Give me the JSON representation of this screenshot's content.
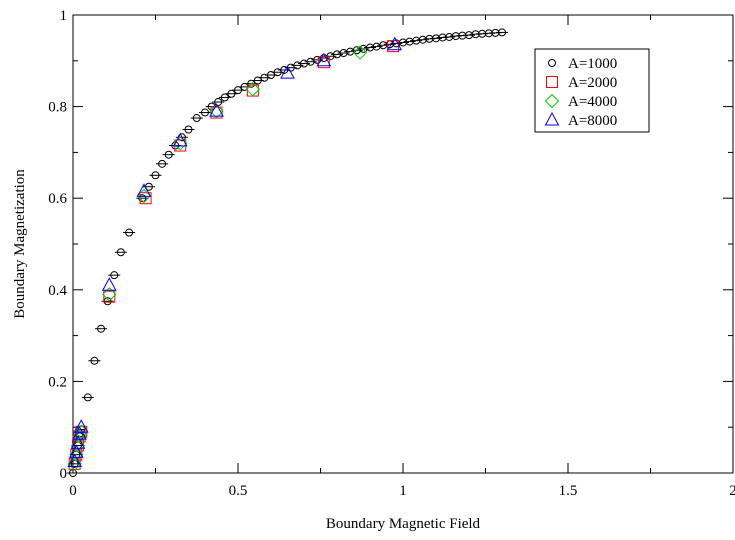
{
  "chart_data": {
    "type": "scatter",
    "xlabel": "Boundary Magnetic Field",
    "ylabel": "Boundary Magnetization",
    "xlim": [
      0,
      2
    ],
    "ylim": [
      0,
      1
    ],
    "x_ticks": [
      "0",
      "0.5",
      "1",
      "1.5",
      "2"
    ],
    "y_ticks": [
      "0",
      "0.2",
      "0.4",
      "0.6",
      "0.8",
      "1"
    ],
    "x_tick_values": [
      0,
      0.5,
      1,
      1.5,
      2
    ],
    "y_tick_values": [
      0,
      0.2,
      0.4,
      0.6,
      0.8,
      1
    ],
    "grid": false,
    "legend_position": "top-right",
    "series": [
      {
        "name": "A=1000",
        "marker": "circle",
        "color": "#000000",
        "x": [
          0.0,
          0.005,
          0.01,
          0.015,
          0.02,
          0.025,
          0.045,
          0.065,
          0.085,
          0.105,
          0.125,
          0.145,
          0.17,
          0.21,
          0.23,
          0.25,
          0.27,
          0.29,
          0.31,
          0.33,
          0.35,
          0.375,
          0.4,
          0.42,
          0.44,
          0.46,
          0.48,
          0.5,
          0.52,
          0.54,
          0.56,
          0.58,
          0.6,
          0.62,
          0.64,
          0.66,
          0.68,
          0.7,
          0.72,
          0.74,
          0.76,
          0.78,
          0.8,
          0.82,
          0.84,
          0.86,
          0.88,
          0.9,
          0.92,
          0.94,
          0.96,
          0.98,
          1.0,
          1.02,
          1.04,
          1.06,
          1.08,
          1.1,
          1.12,
          1.14,
          1.16,
          1.18,
          1.2,
          1.22,
          1.24,
          1.26,
          1.28,
          1.3
        ],
        "y": [
          0.0,
          0.02,
          0.04,
          0.06,
          0.08,
          0.095,
          0.165,
          0.245,
          0.315,
          0.375,
          0.432,
          0.482,
          0.525,
          0.6,
          0.625,
          0.65,
          0.675,
          0.695,
          0.715,
          0.733,
          0.75,
          0.775,
          0.787,
          0.8,
          0.81,
          0.82,
          0.828,
          0.836,
          0.843,
          0.85,
          0.857,
          0.863,
          0.869,
          0.875,
          0.88,
          0.885,
          0.89,
          0.894,
          0.898,
          0.902,
          0.906,
          0.91,
          0.914,
          0.917,
          0.92,
          0.923,
          0.926,
          0.929,
          0.931,
          0.934,
          0.936,
          0.938,
          0.94,
          0.942,
          0.944,
          0.946,
          0.948,
          0.949,
          0.951,
          0.952,
          0.954,
          0.955,
          0.956,
          0.958,
          0.959,
          0.96,
          0.961,
          0.962
        ]
      },
      {
        "name": "A=2000",
        "marker": "square",
        "color": "#ff0000",
        "x": [
          0.005,
          0.01,
          0.015,
          0.02,
          0.025,
          0.11,
          0.22,
          0.325,
          0.435,
          0.545,
          0.76,
          0.97
        ],
        "y": [
          0.02,
          0.04,
          0.06,
          0.08,
          0.09,
          0.385,
          0.6,
          0.715,
          0.787,
          0.835,
          0.897,
          0.932
        ]
      },
      {
        "name": "A=4000",
        "marker": "diamond",
        "color": "#00cc00",
        "x": [
          0.005,
          0.01,
          0.015,
          0.02,
          0.025,
          0.11,
          0.215,
          0.325,
          0.435,
          0.545,
          0.87
        ],
        "y": [
          0.02,
          0.04,
          0.06,
          0.08,
          0.09,
          0.39,
          0.605,
          0.72,
          0.79,
          0.838,
          0.918
        ]
      },
      {
        "name": "A=8000",
        "marker": "triangle",
        "color": "#0000ff",
        "x": [
          0.005,
          0.01,
          0.015,
          0.02,
          0.025,
          0.11,
          0.215,
          0.325,
          0.435,
          0.65,
          0.76,
          0.975
        ],
        "y": [
          0.025,
          0.045,
          0.065,
          0.085,
          0.1,
          0.41,
          0.615,
          0.725,
          0.79,
          0.873,
          0.9,
          0.935
        ]
      }
    ]
  }
}
